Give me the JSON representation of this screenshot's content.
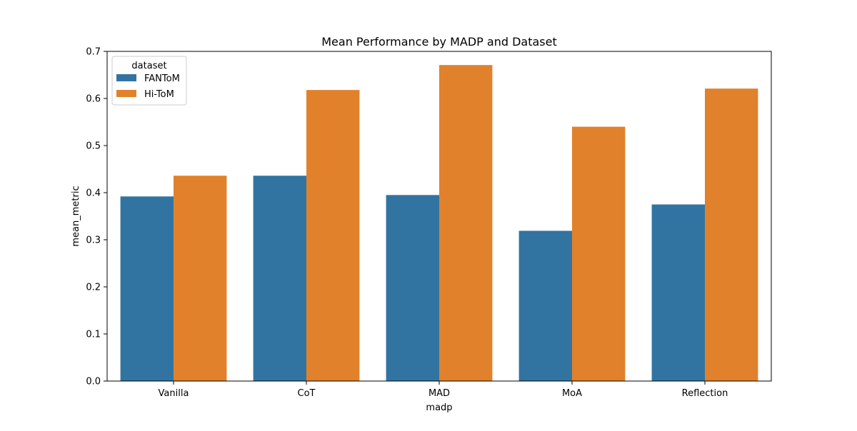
{
  "chart_data": {
    "type": "bar",
    "title": "Mean Performance by MADP and Dataset",
    "xlabel": "madp",
    "ylabel": "mean_metric",
    "categories": [
      "Vanilla",
      "CoT",
      "MAD",
      "MoA",
      "Reflection"
    ],
    "series": [
      {
        "name": "FANToM",
        "color": "#3274a1",
        "values": [
          0.392,
          0.436,
          0.395,
          0.319,
          0.375
        ]
      },
      {
        "name": "Hi-ToM",
        "color": "#e1812c",
        "values": [
          0.436,
          0.618,
          0.671,
          0.54,
          0.621
        ]
      }
    ],
    "ylim": [
      0,
      0.7
    ],
    "yticks": [
      "0.0",
      "0.1",
      "0.2",
      "0.3",
      "0.4",
      "0.5",
      "0.6",
      "0.7"
    ],
    "legend": {
      "title": "dataset",
      "placement": "top-left"
    },
    "grid": false
  }
}
